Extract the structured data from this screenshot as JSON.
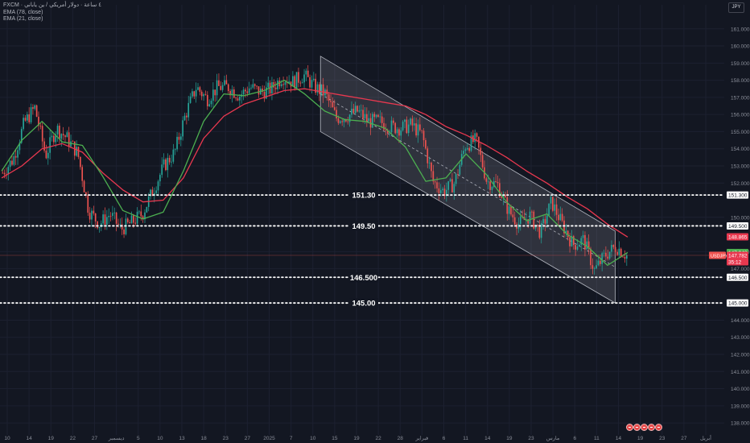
{
  "legend": {
    "symbol": "FXCM · ٤ ساعة · دولار أمريكي / ين ياباني",
    "ema_slow_label": "EMA (78, close)",
    "ema_fast_label": "EMA (21, close)"
  },
  "unit_badge": "JPY",
  "colors": {
    "background": "#131722",
    "grid": "#1c2030",
    "candle_up": "#26a69a",
    "candle_down": "#ef5350",
    "ema_slow": "#e8384f",
    "ema_fast": "#4caf50",
    "channel_fill": "#9598a1",
    "level_line": "#ffffff",
    "axis_text": "#8a8e99"
  },
  "chart_data": {
    "type": "candlestick",
    "title": "",
    "xlabel": "",
    "ylabel": "",
    "ylim": [
      137.3,
      162.4
    ],
    "grid": true,
    "y_ticks": [
      "161.000",
      "160.000",
      "159.000",
      "158.000",
      "157.000",
      "156.000",
      "155.000",
      "154.000",
      "153.000",
      "152.000",
      "150.000",
      "148.000",
      "147.000",
      "144.000",
      "143.000",
      "142.000",
      "141.000",
      "140.000",
      "139.000",
      "138.000"
    ],
    "x_ticks": [
      "10",
      "14",
      "19",
      "22",
      "27",
      "ديسمبر",
      "5",
      "10",
      "13",
      "18",
      "23",
      "27",
      "2025",
      "7",
      "10",
      "15",
      "19",
      "22",
      "28",
      "فبراير",
      "6",
      "11",
      "14",
      "19",
      "23",
      "مارس",
      "6",
      "11",
      "14",
      "19",
      "23",
      "27",
      "أبريل"
    ],
    "price_path": [
      [
        "10",
        152.6
      ],
      [
        "12",
        153.4
      ],
      [
        "14",
        155.5
      ],
      [
        "17",
        156.4
      ],
      [
        "19",
        153.6
      ],
      [
        "21",
        155.2
      ],
      [
        "22",
        154.6
      ],
      [
        "25",
        153.7
      ],
      [
        "27",
        150.4
      ],
      [
        "29",
        149.6
      ],
      [
        "ديسمبر",
        150.2
      ],
      [
        "3",
        149.3
      ],
      [
        "5",
        149.7
      ],
      [
        "7",
        150.2
      ],
      [
        "10",
        151.6
      ],
      [
        "12",
        153.0
      ],
      [
        "13",
        153.8
      ],
      [
        "16",
        156.0
      ],
      [
        "18",
        157.6
      ],
      [
        "20",
        156.9
      ],
      [
        "23",
        157.6
      ],
      [
        "25",
        157.6
      ],
      [
        "27",
        157.1
      ],
      [
        "30",
        157.6
      ],
      [
        "2025",
        157.3
      ],
      [
        "3",
        157.5
      ],
      [
        "7",
        158.2
      ],
      [
        "9",
        157.9
      ],
      [
        "10",
        158.3
      ],
      [
        "13",
        157.6
      ],
      [
        "15",
        157.2
      ],
      [
        "17",
        155.8
      ],
      [
        "19",
        155.9
      ],
      [
        "21",
        156.2
      ],
      [
        "22",
        155.6
      ],
      [
        "24",
        155.6
      ],
      [
        "28",
        155.3
      ],
      [
        "31",
        155.2
      ],
      [
        "فبراير",
        155.4
      ],
      [
        "3",
        154.8
      ],
      [
        "6",
        152.1
      ],
      [
        "9",
        151.5
      ],
      [
        "11",
        152.0
      ],
      [
        "13",
        154.2
      ],
      [
        "14",
        154.5
      ],
      [
        "17",
        152.1
      ],
      [
        "19",
        151.9
      ],
      [
        "21",
        150.4
      ],
      [
        "23",
        149.6
      ],
      [
        "25",
        150.1
      ],
      [
        "27",
        149.1
      ],
      [
        "مارس",
        150.9
      ],
      [
        "3",
        149.6
      ],
      [
        "6",
        148.4
      ],
      [
        "9",
        148.7
      ],
      [
        "11",
        146.9
      ],
      [
        "12",
        147.8
      ],
      [
        "13",
        148.3
      ],
      [
        "14",
        147.78
      ]
    ],
    "series": [
      {
        "name": "EMA (78, close)",
        "values": [
          152.3,
          153.0,
          154.0,
          154.3,
          153.8,
          152.6,
          151.6,
          150.9,
          151.0,
          152.3,
          154.6,
          155.9,
          156.6,
          157.0,
          157.4,
          157.5,
          157.3,
          157.1,
          156.9,
          156.7,
          156.5,
          156.0,
          155.3,
          154.8,
          154.2,
          153.5,
          152.7,
          152.0,
          151.2,
          150.5,
          149.6,
          148.85
        ]
      },
      {
        "name": "EMA (21, close)",
        "values": [
          152.7,
          154.5,
          155.6,
          154.4,
          154.2,
          152.4,
          150.4,
          149.9,
          150.3,
          152.7,
          155.6,
          157.2,
          157.1,
          157.4,
          158.0,
          157.2,
          156.2,
          155.7,
          155.6,
          155.2,
          154.1,
          152.1,
          152.3,
          153.7,
          152.5,
          150.9,
          149.8,
          150.2,
          149.0,
          148.3,
          147.2,
          147.95
        ]
      }
    ],
    "levels": [
      {
        "label": "151.30",
        "axis_label": "151.300",
        "value": 151.3
      },
      {
        "label": "149.50",
        "axis_label": "149.500",
        "value": 149.5
      },
      {
        "label": "146.500",
        "axis_label": "146.500",
        "value": 146.5
      },
      {
        "label": "145.00",
        "axis_label": "145.000",
        "value": 145.0
      }
    ],
    "channel": {
      "upper": [
        [
          "10",
          159.4
        ],
        [
          "19",
          149.2
        ]
      ],
      "lower": [
        [
          "10",
          155.0
        ],
        [
          "19",
          145.0
        ]
      ]
    },
    "price_tags": [
      {
        "text": "148.865",
        "value": 148.865,
        "color": "#e8384f"
      },
      {
        "text": "147.948",
        "value": 147.948,
        "color": "#4caf50"
      },
      {
        "text": "147.782",
        "value": 147.782,
        "color": "#e8384f"
      },
      {
        "text": "35:12",
        "value": 147.65,
        "color": "#e8384f"
      }
    ],
    "symbol_tag": "USDJPY",
    "last_price": 147.782
  }
}
